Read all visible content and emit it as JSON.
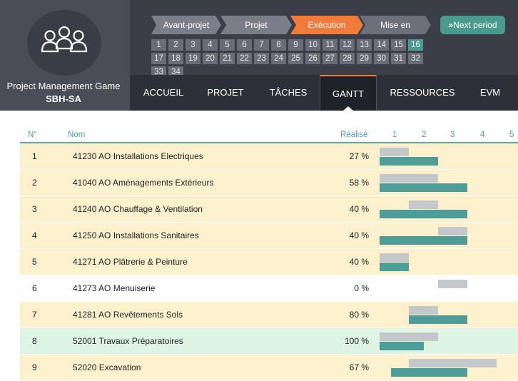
{
  "brand": {
    "title": "Project Management Game",
    "subtitle": "SBH-SA",
    "logo_icon": "team-icon"
  },
  "phases": [
    {
      "label": "Avant-projet",
      "state": "done"
    },
    {
      "label": "Projet",
      "state": "done"
    },
    {
      "label": "Exécution",
      "state": "active"
    },
    {
      "label": "Mise en",
      "state": "future"
    }
  ],
  "next_button": {
    "label": "Next period",
    "icon": "double-chevron-right-icon"
  },
  "periods": [
    "1",
    "2",
    "3",
    "4",
    "5",
    "6",
    "7",
    "8",
    "9",
    "10",
    "11",
    "12",
    "13",
    "14",
    "15",
    "16",
    "17",
    "18",
    "19",
    "20",
    "21",
    "22",
    "23",
    "24",
    "25",
    "26",
    "27",
    "28",
    "29",
    "30",
    "31",
    "32",
    "33",
    "34"
  ],
  "current_period": "16",
  "nav": {
    "items": [
      "ACCUEIL",
      "PROJET",
      "TÂCHES",
      "GANTT",
      "RESSOURCES",
      "EVM"
    ],
    "active": "GANTT"
  },
  "table": {
    "headers": {
      "no": "N°",
      "name": "Nom",
      "realise": "Réalisé"
    },
    "period_columns": [
      "1",
      "2",
      "3",
      "4",
      "5"
    ],
    "rows": [
      {
        "no": "1",
        "name": "41230 AO Installations Electriques",
        "realise": "27 %",
        "style": "yellow",
        "plan": [
          0,
          1
        ],
        "real": [
          0,
          2
        ]
      },
      {
        "no": "2",
        "name": "41040 AO Aménagements Extérieurs",
        "realise": "58 %",
        "style": "yellow",
        "plan": [
          0,
          2
        ],
        "real": [
          0,
          3
        ]
      },
      {
        "no": "3",
        "name": "41240 AO Chauffage & Ventilation",
        "realise": "40 %",
        "style": "yellow",
        "plan": [
          1,
          2
        ],
        "real": [
          0,
          3
        ]
      },
      {
        "no": "4",
        "name": "41250 AO Installations Sanitaires",
        "realise": "40 %",
        "style": "yellow",
        "plan": [
          2,
          3
        ],
        "real": [
          0,
          3
        ]
      },
      {
        "no": "5",
        "name": "41271 AO Plâtrerie & Peinture",
        "realise": "40 %",
        "style": "yellow",
        "plan": [
          0,
          1
        ],
        "real": [
          0,
          1
        ]
      },
      {
        "no": "6",
        "name": "41273 AO Menuiserie",
        "realise": "0 %",
        "style": "white",
        "plan": [
          2,
          3
        ],
        "real": null
      },
      {
        "no": "7",
        "name": "41281 AO Revêtements Sols",
        "realise": "80 %",
        "style": "yellow",
        "plan": [
          1,
          2
        ],
        "real": [
          1,
          3
        ]
      },
      {
        "no": "8",
        "name": "52001 Travaux Préparatoires",
        "realise": "100 %",
        "style": "green",
        "plan": [
          0,
          2
        ],
        "real": [
          0,
          1.5
        ]
      },
      {
        "no": "9",
        "name": "52020 Excavation",
        "realise": "67 %",
        "style": "yellow",
        "plan": [
          1,
          4
        ],
        "real": [
          0.4,
          3
        ]
      }
    ]
  },
  "colors": {
    "header_bg": "#3b3e47",
    "accent_orange": "#f07a3a",
    "accent_teal": "#4a9a8e",
    "planned_bar": "#c4c8ca",
    "actual_bar": "#4e9c97",
    "row_yellow": "#fdf1cd",
    "row_green": "#def5e4"
  }
}
